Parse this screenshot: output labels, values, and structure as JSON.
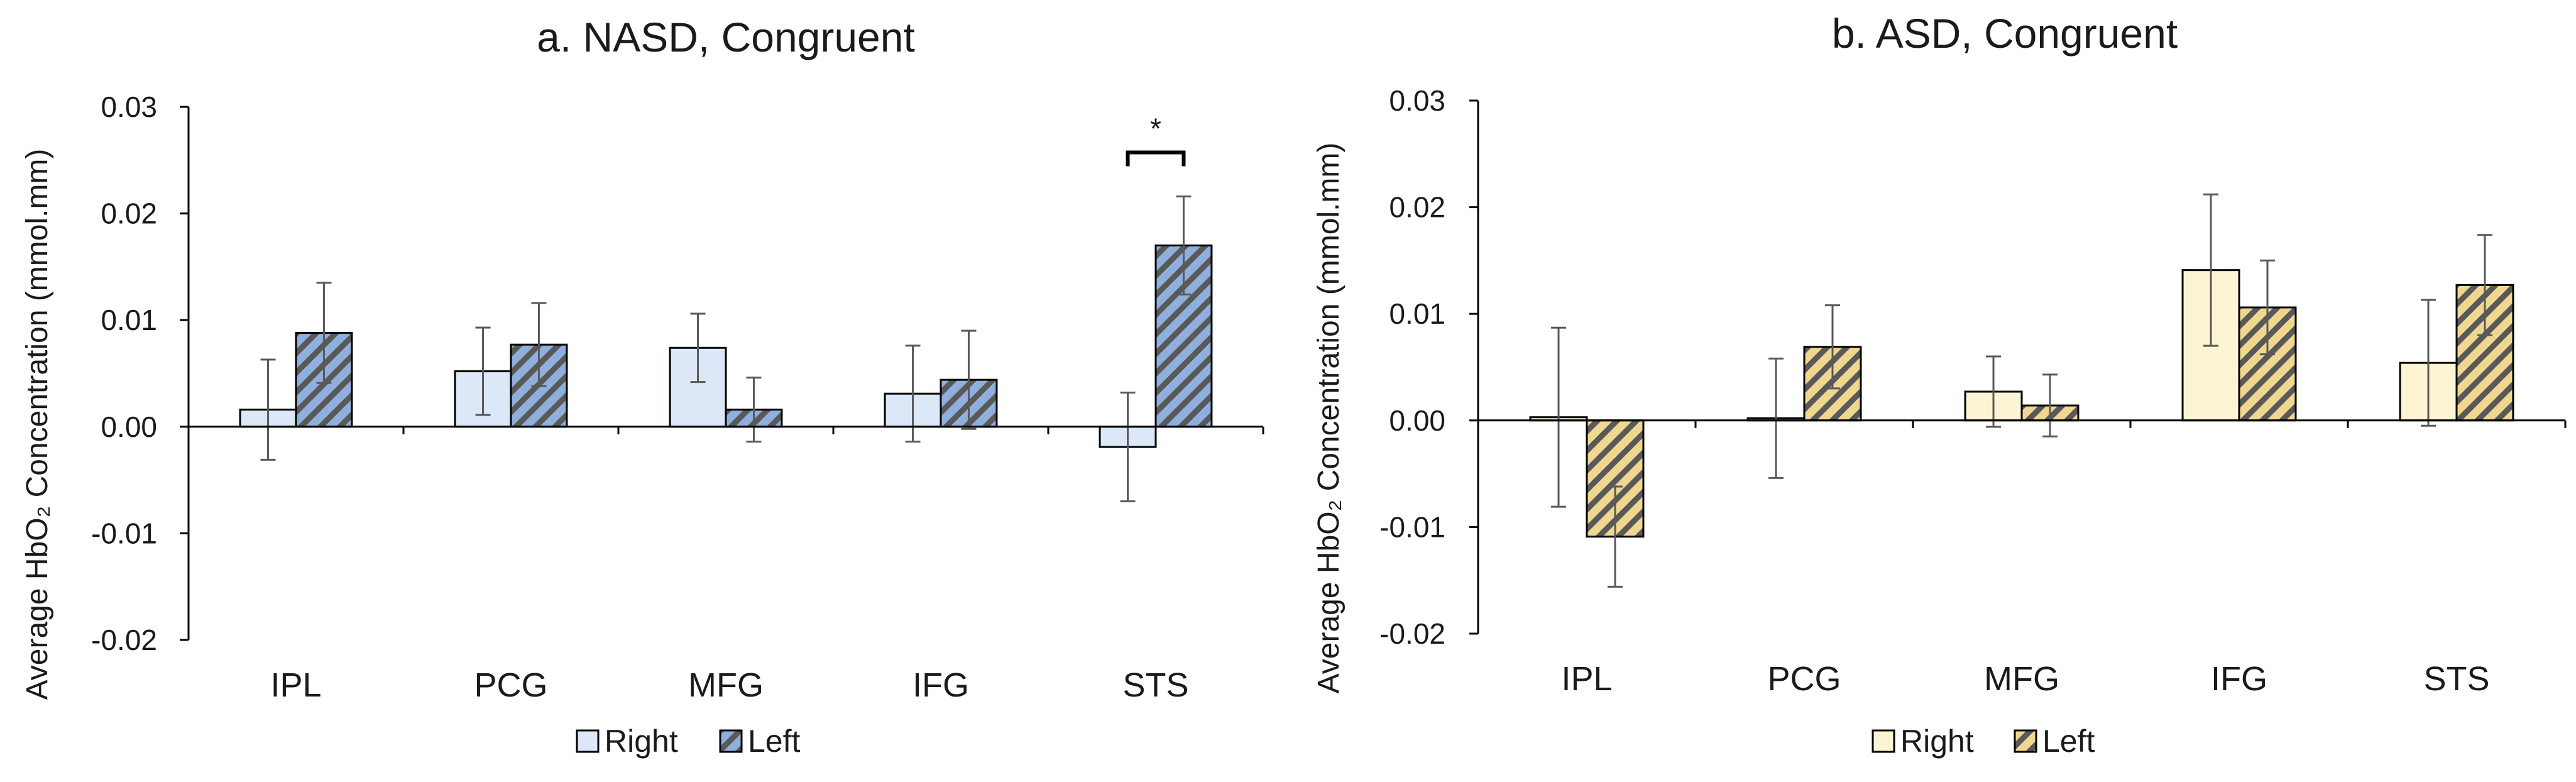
{
  "chart_data": [
    {
      "type": "bar",
      "title": "a. NASD, Congruent",
      "ylabel": "Average HbO₂ Concentration (mmol.mm)",
      "xlabel": "",
      "ylim": [
        -0.02,
        0.03
      ],
      "yticks": [
        "0.03",
        "0.02",
        "0.01",
        "0.00",
        "-0.01",
        "-0.02"
      ],
      "ytick_values": [
        0.03,
        0.02,
        0.01,
        0.0,
        -0.01,
        -0.02
      ],
      "categories": [
        "IPL",
        "PCG",
        "MFG",
        "IFG",
        "STS"
      ],
      "series": [
        {
          "name": "Right",
          "values": [
            0.0016,
            0.0052,
            0.0074,
            0.0031,
            -0.0019
          ],
          "errors": [
            0.0047,
            0.0041,
            0.0032,
            0.0045,
            0.0051
          ],
          "color": "#dce8f7",
          "pattern": "solid"
        },
        {
          "name": "Left",
          "values": [
            0.0088,
            0.0077,
            0.0016,
            0.0044,
            0.017
          ],
          "errors": [
            0.0047,
            0.0039,
            0.003,
            0.0046,
            0.0046
          ],
          "color": "#8fb0dc",
          "pattern": "hatch"
        }
      ],
      "annotations": [
        {
          "text": "*",
          "category": "STS"
        }
      ],
      "legend": "bottom"
    },
    {
      "type": "bar",
      "title": "b. ASD, Congruent",
      "ylabel": "Average HbO₂ Concentration (mmol.mm)",
      "xlabel": "",
      "ylim": [
        -0.02,
        0.03
      ],
      "yticks": [
        "0.03",
        "0.02",
        "0.01",
        "0.00",
        "-0.01",
        "-0.02"
      ],
      "ytick_values": [
        0.03,
        0.02,
        0.01,
        0.0,
        -0.01,
        -0.02
      ],
      "categories": [
        "IPL",
        "PCG",
        "MFG",
        "IFG",
        "STS"
      ],
      "series": [
        {
          "name": "Right",
          "values": [
            0.0003,
            0.0002,
            0.0027,
            0.0141,
            0.0054
          ],
          "errors": [
            0.0084,
            0.0056,
            0.0033,
            0.0071,
            0.0059
          ],
          "color": "#fcf4d2",
          "pattern": "solid"
        },
        {
          "name": "Left",
          "values": [
            -0.0109,
            0.0069,
            0.0014,
            0.0106,
            0.0127
          ],
          "errors": [
            0.0047,
            0.0039,
            0.0029,
            0.0044,
            0.0047
          ],
          "color": "#f0d78f",
          "pattern": "hatch"
        }
      ],
      "annotations": [],
      "legend": "bottom"
    }
  ]
}
